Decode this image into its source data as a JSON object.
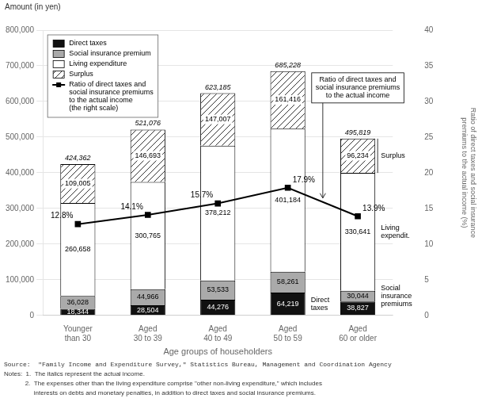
{
  "chart_data": {
    "type": "bar",
    "stacked": true,
    "data_labels": true,
    "grid": true,
    "legend": "upper left",
    "categories": [
      "Younger\nthan 30",
      "Aged\n30 to 39",
      "Aged\n40 to 49",
      "Aged\n50 to 59",
      "Aged\n60 or older"
    ],
    "xlabel": "Age groups of householders",
    "ylabel": "Amount (in yen)",
    "y2label": "Ratio of direct taxes and social insurance\npremiums to the actual income (%)",
    "ylim": [
      0,
      800000
    ],
    "yticks": [
      0,
      {
        "value": 100000,
        "label": "100,000"
      },
      {
        "value": 200000,
        "label": "200,000"
      },
      {
        "value": 300000,
        "label": "300,000"
      },
      {
        "value": 400000,
        "label": "400,000"
      },
      {
        "value": 500000,
        "label": "500,000"
      },
      {
        "value": 600000,
        "label": "600,000"
      },
      {
        "value": 700000,
        "label": "700,000"
      },
      {
        "value": 800000,
        "label": "800,000"
      }
    ],
    "y2lim": [
      0,
      40
    ],
    "y2ticks": [
      0,
      5,
      10,
      15,
      20,
      25,
      30,
      35,
      40
    ],
    "series": [
      {
        "name": "Direct taxes",
        "color": "#111111",
        "values": [
          18344,
          28504,
          44276,
          64219,
          38827
        ],
        "value_labels": [
          "18,344",
          "28,504",
          "44,276",
          "64,219",
          "38,827"
        ]
      },
      {
        "name": "Social insurance premium",
        "color": "#aaaaaa",
        "values": [
          36028,
          44966,
          53533,
          58261,
          30044
        ],
        "value_labels": [
          "36,028",
          "44,966",
          "53,533",
          "58,261",
          "30,044"
        ]
      },
      {
        "name": "Living expenditure",
        "color": "#ffffff",
        "values": [
          260658,
          300765,
          378212,
          401184,
          330641
        ],
        "value_labels": [
          "260,658",
          "300,765",
          "378,212",
          "401,184",
          "330,641"
        ]
      },
      {
        "name": "Surplus",
        "color": "#ffffff",
        "values": [
          109005,
          146693,
          147007,
          161416,
          96234
        ],
        "value_labels": [
          "109,005",
          "146,693",
          "147,007",
          "161,416",
          "96,234"
        ]
      },
      {
        "name": "Ratio of direct taxes and\nsocial insurance premiums\nto the actual income\n(the right scale)",
        "type": "line",
        "axis": "y2",
        "color": "#000000",
        "marker": "square",
        "values": [
          12.8,
          14.1,
          15.7,
          17.9,
          13.9
        ],
        "value_labels": [
          "12.8%",
          "14.1%",
          "15.7%",
          "17.9%",
          "13.9%"
        ]
      }
    ],
    "actual_income": {
      "values": [
        424362,
        521076,
        623185,
        685228,
        495819
      ],
      "value_labels": [
        "424,362",
        "521,076",
        "623,185",
        "685,228",
        "495,819"
      ]
    },
    "annotations": [
      "Ratio of direct taxes and\nsocial insurance premiums\nto the actual income",
      "Direct\ntaxes",
      "Social\ninsurance\npremiums",
      "Living\nexpendit.",
      "Surplus"
    ],
    "notes": [
      "Source:  \"Family Income and Expenditure Survey,\" Statistics Bureau, Management and Coordination Agency",
      "Notes:  1.  The italics represent the actual income.",
      "            2.  The expenses other than the living expenditure comprise \"other non-living expenditure,\" which includes",
      "                 interests on debts and monetary penalties, in addition to direct taxes and social insurance premiums."
    ]
  }
}
